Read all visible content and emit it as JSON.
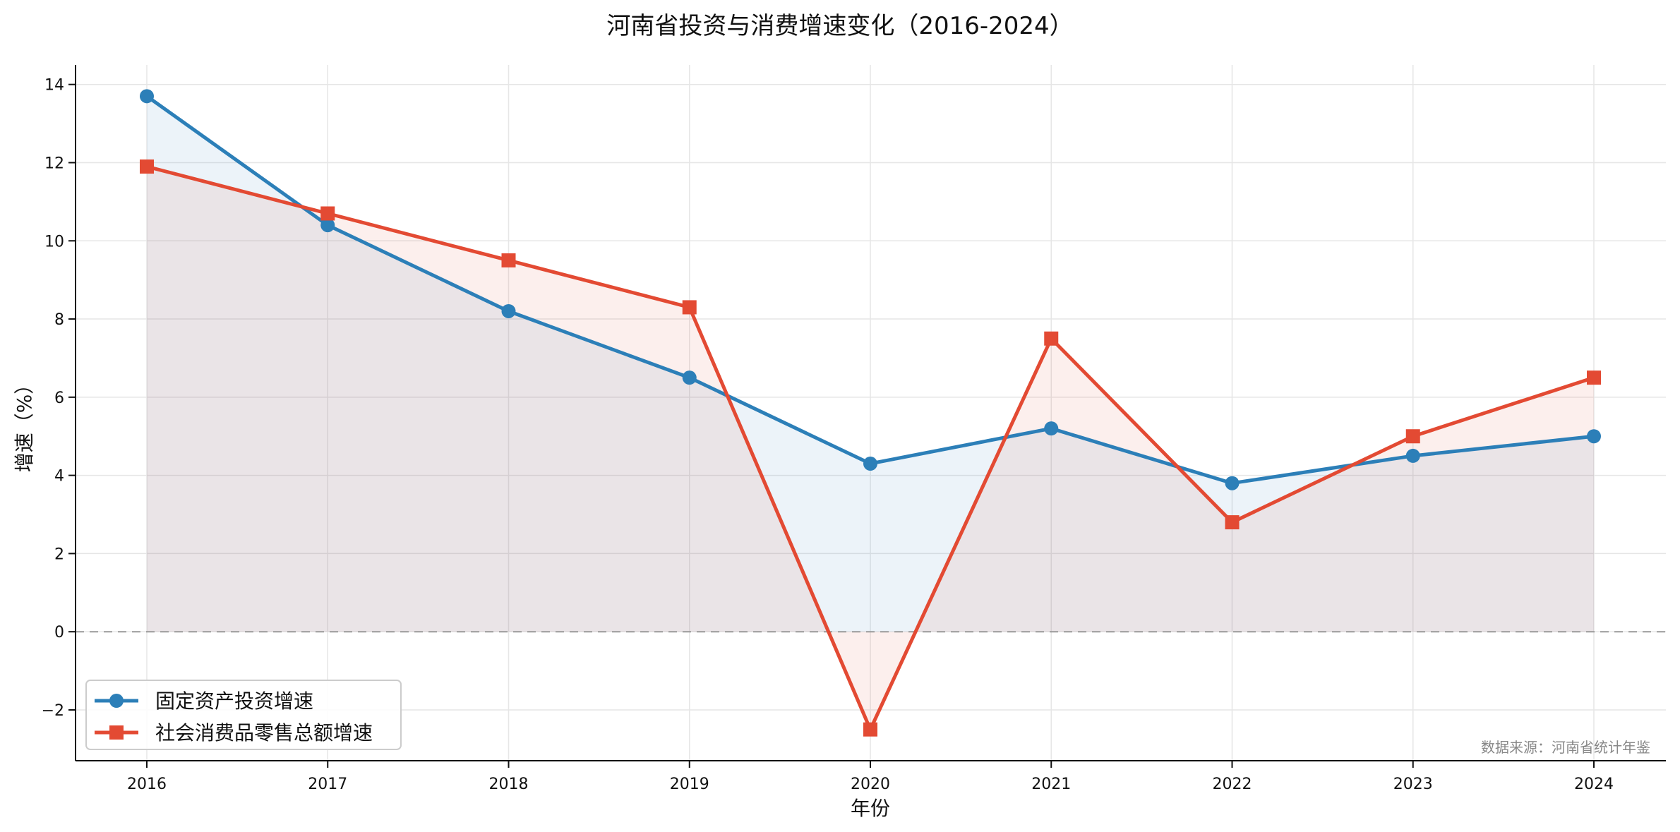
{
  "chart_data": {
    "type": "line",
    "title": "河南省投资与消费增速变化（2016-2024）",
    "xlabel": "年份",
    "ylabel": "增速（%）",
    "x": [
      "2016",
      "2017",
      "2018",
      "2019",
      "2020",
      "2021",
      "2022",
      "2023",
      "2024"
    ],
    "ylim": [
      -3.3,
      14.5
    ],
    "yticks": [
      -2,
      0,
      2,
      4,
      6,
      8,
      10,
      12,
      14
    ],
    "ytick_labels": [
      "−2",
      "0",
      "2",
      "4",
      "6",
      "8",
      "10",
      "12",
      "14"
    ],
    "grid": true,
    "zero_line": true,
    "legend_position": "lower-left",
    "series": [
      {
        "name": "固定资产投资增速",
        "values": [
          13.7,
          10.4,
          8.2,
          6.5,
          4.3,
          5.2,
          3.8,
          4.5,
          5.0
        ],
        "color": "#2c7fb8",
        "marker": "circle"
      },
      {
        "name": "社会消费品零售总额增速",
        "values": [
          11.9,
          10.7,
          9.5,
          8.3,
          -2.5,
          7.5,
          2.8,
          5.0,
          6.5
        ],
        "color": "#e34a33",
        "marker": "square"
      }
    ],
    "source": "数据来源：河南省统计年鉴"
  }
}
